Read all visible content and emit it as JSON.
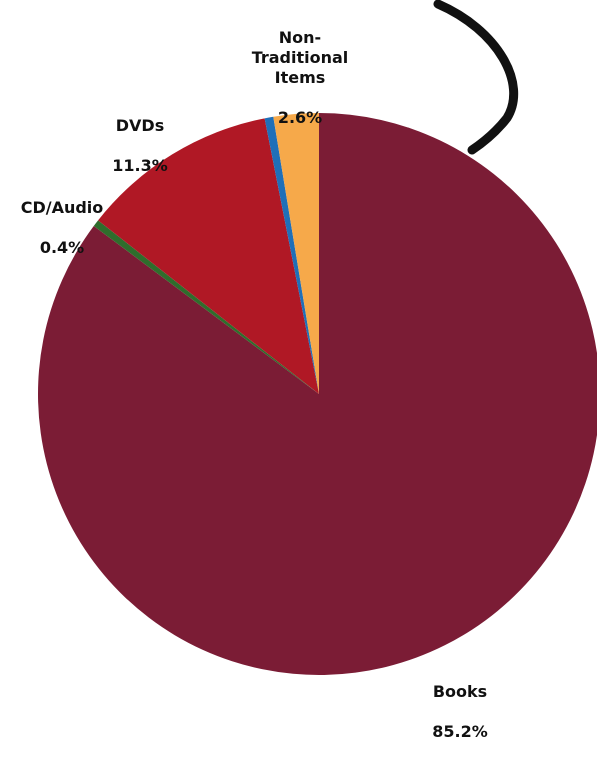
{
  "chart_data": {
    "type": "pie",
    "title": "",
    "slices": [
      {
        "label": "Books",
        "value": 85.2,
        "value_label": "85.2%",
        "color": "#7b1c35"
      },
      {
        "label": "CD/Audio",
        "value": 0.4,
        "value_label": "0.4%",
        "color": "#2f6d2c"
      },
      {
        "label": "DVDs",
        "value": 11.3,
        "value_label": "11.3%",
        "color": "#b01825"
      },
      {
        "label": "",
        "value": 0.5,
        "value_label": "",
        "color": "#1f6fb8"
      },
      {
        "label": "Non-\nTraditional\nItems",
        "value": 2.6,
        "value_label": "2.6%",
        "color": "#f6a94a"
      }
    ],
    "start": "12 o'clock",
    "direction": "clockwise",
    "legend": "none",
    "decoration": "curved-arrow"
  }
}
